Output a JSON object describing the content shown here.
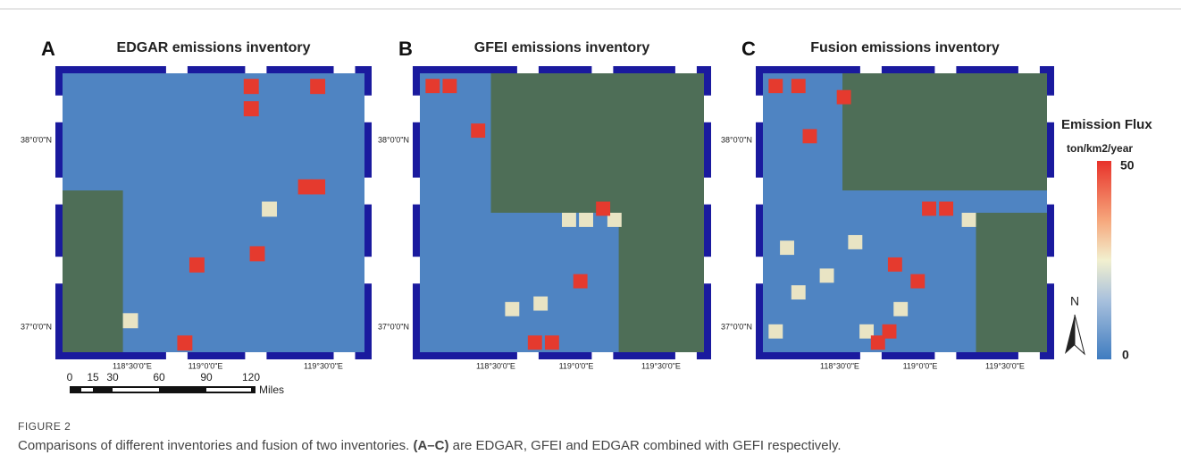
{
  "panels": [
    {
      "letter": "A",
      "title": "EDGAR emissions inventory",
      "lat_labels": [
        "38°0'0\"N",
        "37°0'0\"N"
      ],
      "lon_labels": [
        "118°30'0\"E",
        "119°0'0\"E",
        "119°30'0\"E"
      ]
    },
    {
      "letter": "B",
      "title": "GFEI emissions inventory",
      "lat_labels": [
        "38°0'0\"N",
        "37°0'0\"N"
      ],
      "lon_labels": [
        "118°30'0\"E",
        "119°0'0\"E",
        "119°30'0\"E"
      ]
    },
    {
      "letter": "C",
      "title": "Fusion emissions inventory",
      "lat_labels": [
        "38°0'0\"N",
        "37°0'0\"N"
      ],
      "lon_labels": [
        "118°30'0\"E",
        "119°0'0\"E",
        "119°30'0\"E"
      ]
    }
  ],
  "scale_bar": {
    "ticks": [
      "0",
      "15",
      "30",
      "60",
      "90",
      "120"
    ],
    "unit": "Miles"
  },
  "legend": {
    "title": "Emission Flux",
    "unit": "ton/km2/year",
    "max": 50,
    "min": 0
  },
  "north": "N",
  "caption": {
    "label": "FIGURE 2",
    "text_pre": "Comparisons of different inventories and fusion of two inventories. ",
    "bold": "(A–C)",
    "text_post": " are EDGAR, GFEI and EDGAR combined with GEFI respectively."
  }
}
